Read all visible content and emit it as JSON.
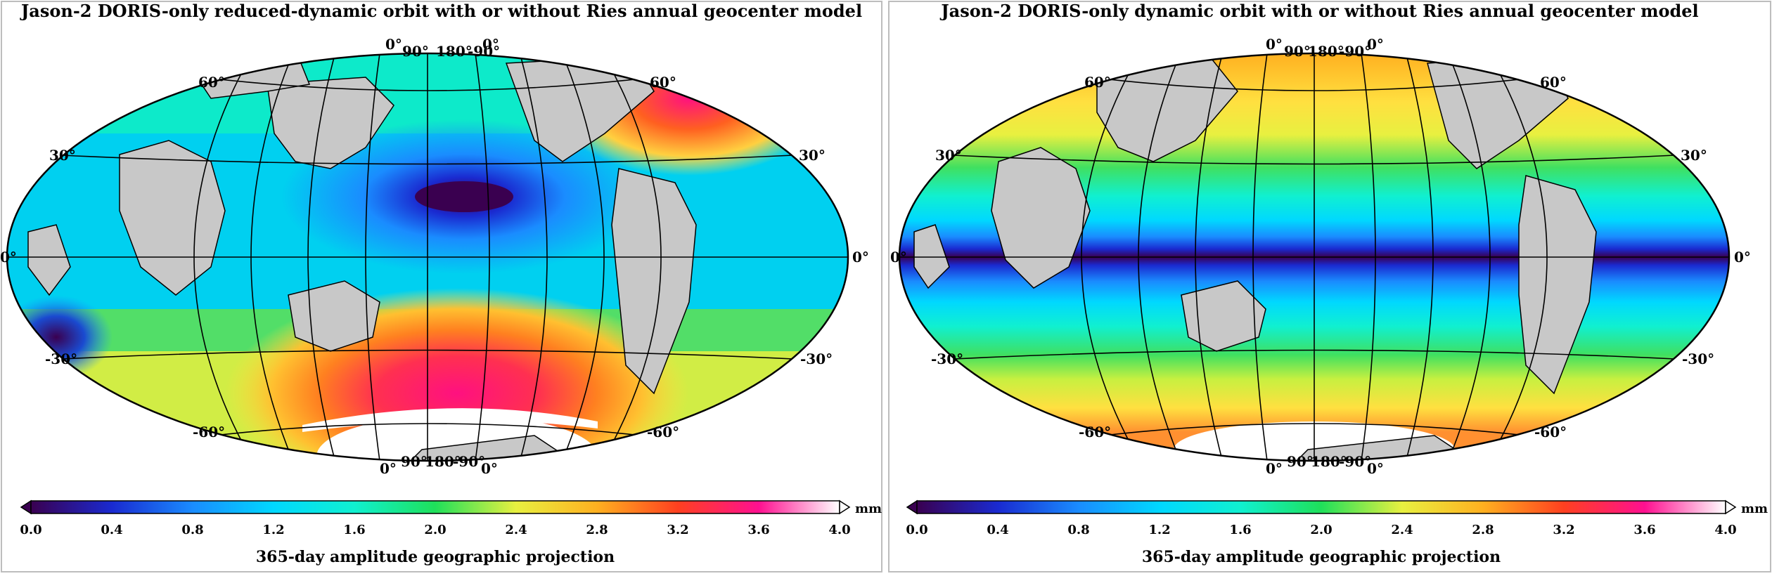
{
  "colorbar_ticks": [
    "0.0",
    "0.4",
    "0.8",
    "1.2",
    "1.6",
    "2.0",
    "2.4",
    "2.8",
    "3.2",
    "3.6",
    "4.0"
  ],
  "colorbar_stops": [
    "#3a0050",
    "#1a2ad0",
    "#1a8cff",
    "#00e0ff",
    "#1fe05a",
    "#e8f040",
    "#ffb020",
    "#ff5520",
    "#ff1080",
    "#ff80ff",
    "#ffffff"
  ],
  "panels": [
    {
      "title": "Jason-2 DORIS-only reduced-dynamic orbit with or without Ries annual geocenter model",
      "caption": "365-day amplitude geographic projection",
      "unit": "mm",
      "lon_top": [
        "0°",
        "90°",
        "180°",
        "-90°",
        "0°"
      ],
      "lon_bottom": [
        "0°",
        "90°",
        "180°",
        "-90°",
        "0°"
      ],
      "lat_left": [
        "60°",
        "30°",
        "0°",
        "-30°",
        "-60°"
      ],
      "lat_right": [
        "60°",
        "30°",
        "0°",
        "-30°",
        "-60°"
      ]
    },
    {
      "title": "Jason-2 DORIS-only dynamic orbit with or without Ries annual geocenter model",
      "caption": "365-day amplitude geographic projection",
      "unit": "mm",
      "lon_top": [
        "0°",
        "90°",
        "180°",
        "-90°",
        "0°"
      ],
      "lon_bottom": [
        "0°",
        "90°",
        "180°",
        "-90°",
        "0°"
      ],
      "lat_left": [
        "60°",
        "30°",
        "0°",
        "-30°",
        "-60°"
      ],
      "lat_right": [
        "60°",
        "30°",
        "0°",
        "-30°",
        "-60°"
      ]
    }
  ]
}
